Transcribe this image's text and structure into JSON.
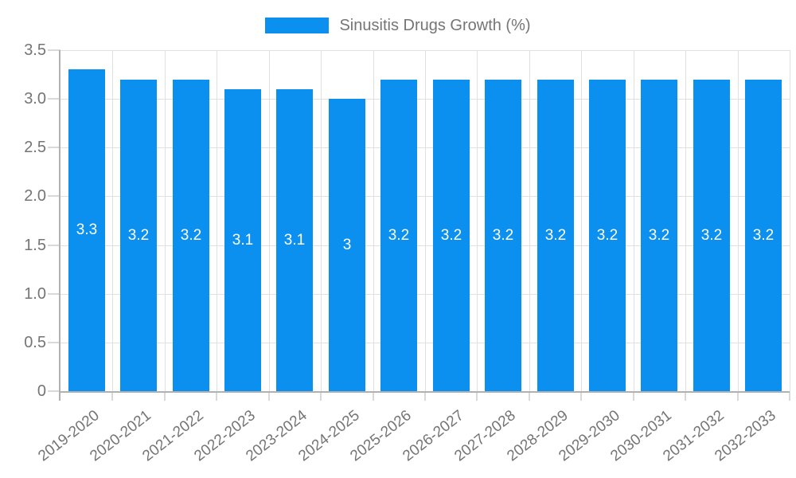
{
  "chart_data": {
    "type": "bar",
    "legend": "Sinusitis Drugs Growth (%)",
    "legend_position": "top",
    "categories": [
      "2019-2020",
      "2020-2021",
      "2021-2022",
      "2022-2023",
      "2023-2024",
      "2024-2025",
      "2025-2026",
      "2026-2027",
      "2027-2028",
      "2028-2029",
      "2029-2030",
      "2030-2031",
      "2031-2032",
      "2032-2033"
    ],
    "values": [
      3.3,
      3.2,
      3.2,
      3.1,
      3.1,
      3,
      3.2,
      3.2,
      3.2,
      3.2,
      3.2,
      3.2,
      3.2,
      3.2
    ],
    "value_labels": [
      "3.3",
      "3.2",
      "3.2",
      "3.1",
      "3.1",
      "3",
      "3.2",
      "3.2",
      "3.2",
      "3.2",
      "3.2",
      "3.2",
      "3.2",
      "3.2"
    ],
    "ylim": [
      0,
      3.5
    ],
    "ytick_step": 0.5,
    "ytick_labels_top_to_bottom": [
      "3.5",
      "3.0",
      "2.5",
      "2.0",
      "1.5",
      "1.0",
      "0.5",
      "0"
    ],
    "grid": true,
    "colors": {
      "bar": "#0b90f0",
      "axis_text": "#757575",
      "value_label_text": "#ffffff",
      "grid_line": "#e0e0e0",
      "tick_line": "#d9d9d9",
      "axis_line": "#b1b1b1",
      "background": "#ffffff"
    }
  }
}
